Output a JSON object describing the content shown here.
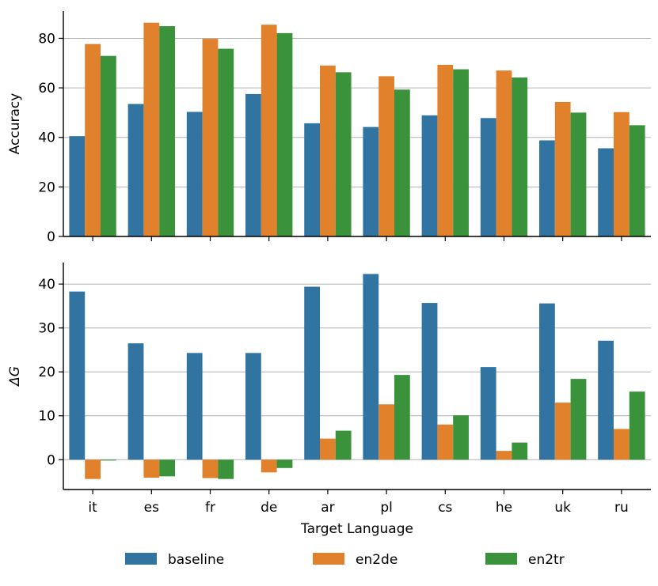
{
  "chart_data": [
    {
      "type": "bar",
      "categories": [
        "it",
        "es",
        "fr",
        "de",
        "ar",
        "pl",
        "cs",
        "he",
        "uk",
        "ru"
      ],
      "series": [
        {
          "name": "baseline",
          "values": [
            40.5,
            53.5,
            50.3,
            57.5,
            45.7,
            44.2,
            48.9,
            47.8,
            38.8,
            35.6
          ]
        },
        {
          "name": "en2de",
          "values": [
            77.7,
            86.3,
            79.8,
            85.5,
            69.0,
            64.7,
            69.3,
            67.0,
            54.3,
            50.2
          ]
        },
        {
          "name": "en2tr",
          "values": [
            72.9,
            84.9,
            75.8,
            82.1,
            66.3,
            59.3,
            67.5,
            64.2,
            50.0,
            44.9
          ]
        }
      ],
      "ylabel": "Accuracy",
      "ylim": [
        0,
        91
      ],
      "yticks": [
        "0",
        "20",
        "40",
        "60",
        "80"
      ],
      "grid": "horizontal"
    },
    {
      "type": "bar",
      "categories": [
        "it",
        "es",
        "fr",
        "de",
        "ar",
        "pl",
        "cs",
        "he",
        "uk",
        "ru"
      ],
      "series": [
        {
          "name": "baseline",
          "values": [
            38.3,
            26.5,
            24.3,
            24.3,
            39.4,
            42.3,
            35.7,
            21.1,
            35.6,
            27.1
          ]
        },
        {
          "name": "en2de",
          "values": [
            -4.4,
            -4.1,
            -4.2,
            -2.9,
            4.8,
            12.6,
            8.0,
            2.0,
            13.0,
            7.0
          ]
        },
        {
          "name": "en2tr",
          "values": [
            -0.2,
            -3.8,
            -4.4,
            -1.9,
            6.6,
            19.3,
            10.1,
            3.9,
            18.4,
            15.5
          ]
        }
      ],
      "ylabel": "ΔG",
      "xlabel": "Target Language",
      "ylim": [
        -6.8,
        44.9
      ],
      "yticks": [
        "0",
        "10",
        "20",
        "30",
        "40"
      ],
      "grid": "horizontal"
    }
  ],
  "legend": {
    "placement": "bottom",
    "items": [
      {
        "label": "baseline",
        "color": "#3274a1"
      },
      {
        "label": "en2de",
        "color": "#e1812c"
      },
      {
        "label": "en2tr",
        "color": "#3a923a"
      }
    ]
  },
  "colors": {
    "baseline": "#3274a1",
    "en2de": "#e1812c",
    "en2tr": "#3a923a",
    "grid": "#b0b0b0",
    "axis": "#000000"
  }
}
